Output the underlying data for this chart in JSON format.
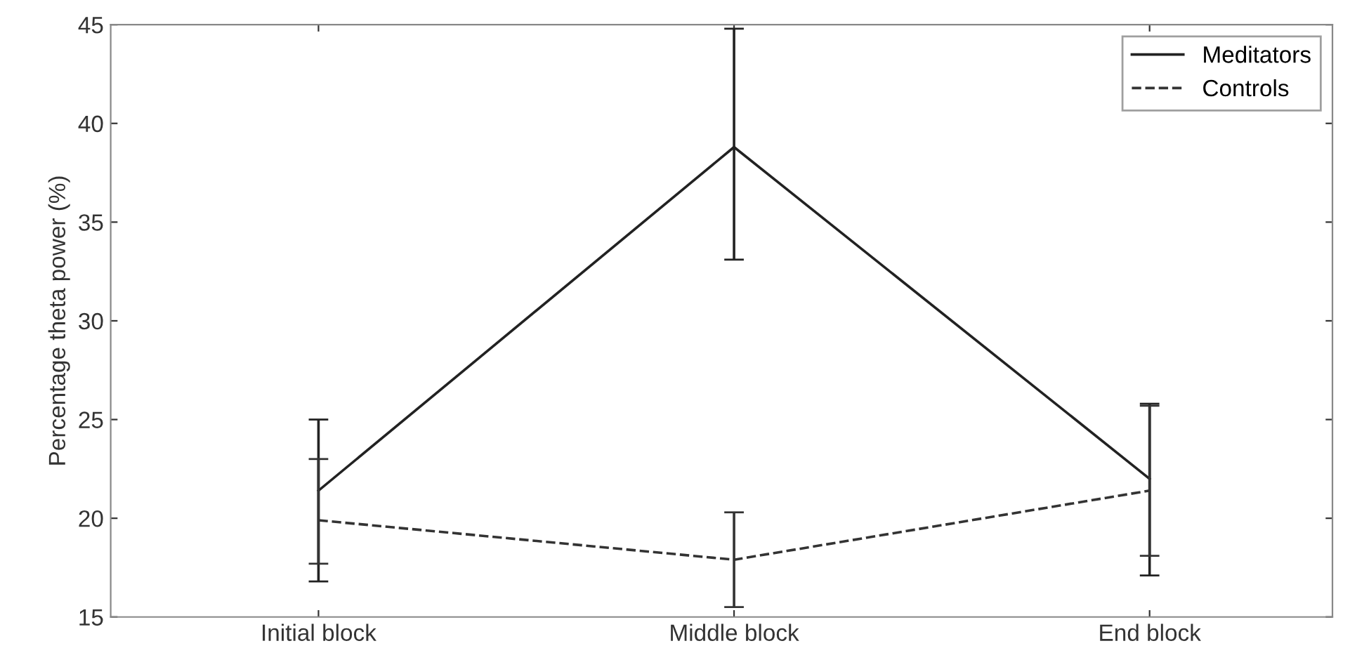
{
  "chart_data": {
    "type": "line",
    "ylabel": "Percentage theta power (%)",
    "categories": [
      "Initial block",
      "Middle block",
      "End block"
    ],
    "series": [
      {
        "name": "Meditators",
        "color": "#222222",
        "line_style": "solid",
        "values": [
          21.4,
          38.8,
          22.0
        ],
        "errors": [
          [
            16.8,
            25.0
          ],
          [
            33.1,
            44.8
          ],
          [
            17.1,
            25.8
          ]
        ]
      },
      {
        "name": "Controls",
        "color": "#333333",
        "line_style": "dashed",
        "values": [
          19.9,
          17.9,
          21.4
        ],
        "errors": [
          [
            17.7,
            23.0
          ],
          [
            15.5,
            20.3
          ],
          [
            18.1,
            25.7
          ]
        ]
      }
    ],
    "ylim": [
      15,
      45
    ],
    "yticks": [
      15,
      20,
      25,
      30,
      35,
      40,
      45
    ],
    "grid": false,
    "legend": "top right",
    "marker": "none"
  }
}
